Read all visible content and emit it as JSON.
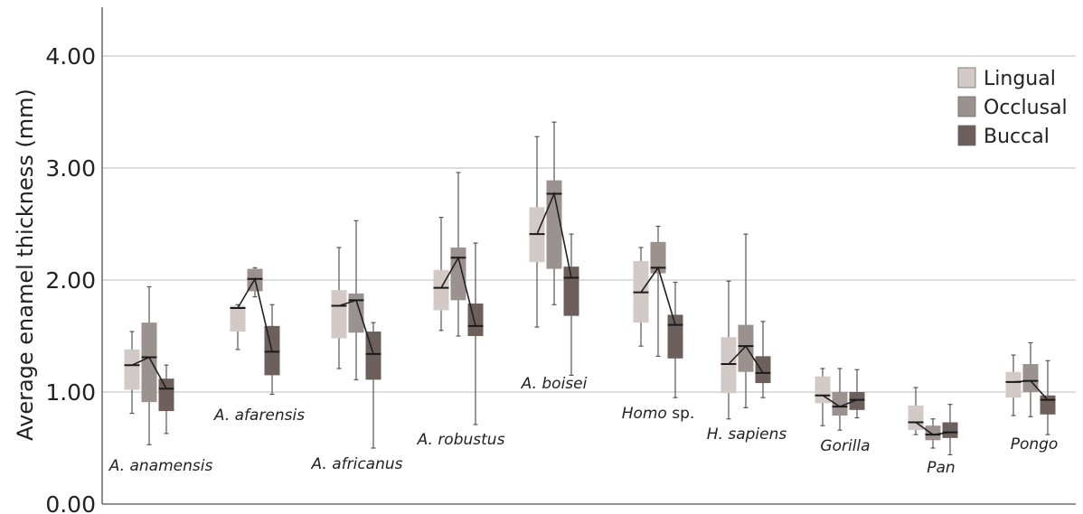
{
  "chart_data": {
    "type": "box",
    "ylabel": "Average enamel thickness (mm)",
    "ylim": [
      0,
      4.4
    ],
    "yticks": [
      "0.00",
      "1.00",
      "2.00",
      "3.00",
      "4.00"
    ],
    "grid": "horizontal",
    "legend_position": "top-right",
    "series": [
      {
        "name": "Lingual",
        "color": "#d3cac8"
      },
      {
        "name": "Occlusal",
        "color": "#9b918f"
      },
      {
        "name": "Buccal",
        "color": "#6c5f5c"
      }
    ],
    "groups": [
      {
        "name": "A. anamensis",
        "boxes": [
          {
            "min": 0.81,
            "q1": 1.02,
            "median": 1.24,
            "q3": 1.38,
            "max": 1.54
          },
          {
            "min": 0.53,
            "q1": 0.91,
            "median": 1.31,
            "q3": 1.62,
            "max": 1.94
          },
          {
            "min": 0.63,
            "q1": 0.83,
            "median": 1.03,
            "q3": 1.12,
            "max": 1.24
          }
        ]
      },
      {
        "name": "A. afarensis",
        "boxes": [
          {
            "min": 1.38,
            "q1": 1.54,
            "median": 1.75,
            "q3": 1.77,
            "max": 1.78
          },
          {
            "min": 1.85,
            "q1": 1.9,
            "median": 2.01,
            "q3": 2.1,
            "max": 2.11
          },
          {
            "min": 0.98,
            "q1": 1.15,
            "median": 1.36,
            "q3": 1.59,
            "max": 1.78
          }
        ]
      },
      {
        "name": "A. africanus",
        "boxes": [
          {
            "min": 1.21,
            "q1": 1.48,
            "median": 1.77,
            "q3": 1.91,
            "max": 2.29
          },
          {
            "min": 1.11,
            "q1": 1.53,
            "median": 1.82,
            "q3": 1.88,
            "max": 2.53
          },
          {
            "min": 0.5,
            "q1": 1.11,
            "median": 1.34,
            "q3": 1.54,
            "max": 1.62
          }
        ]
      },
      {
        "name": "A. robustus",
        "boxes": [
          {
            "min": 1.55,
            "q1": 1.73,
            "median": 1.93,
            "q3": 2.09,
            "max": 2.56
          },
          {
            "min": 1.5,
            "q1": 1.82,
            "median": 2.2,
            "q3": 2.29,
            "max": 2.96
          },
          {
            "min": 0.71,
            "q1": 1.5,
            "median": 1.59,
            "q3": 1.79,
            "max": 2.33
          }
        ]
      },
      {
        "name": "A. boisei",
        "boxes": [
          {
            "min": 1.58,
            "q1": 2.16,
            "median": 2.41,
            "q3": 2.65,
            "max": 3.28
          },
          {
            "min": 1.78,
            "q1": 2.1,
            "median": 2.77,
            "q3": 2.89,
            "max": 3.41
          },
          {
            "min": 1.15,
            "q1": 1.68,
            "median": 2.02,
            "q3": 2.12,
            "max": 2.41
          }
        ]
      },
      {
        "name": "Homo sp.",
        "boxes": [
          {
            "min": 1.41,
            "q1": 1.62,
            "median": 1.89,
            "q3": 2.17,
            "max": 2.29
          },
          {
            "min": 1.32,
            "q1": 2.06,
            "median": 2.11,
            "q3": 2.34,
            "max": 2.48
          },
          {
            "min": 0.95,
            "q1": 1.3,
            "median": 1.6,
            "q3": 1.69,
            "max": 1.98
          }
        ]
      },
      {
        "name": "H. sapiens",
        "boxes": [
          {
            "min": 0.76,
            "q1": 0.99,
            "median": 1.25,
            "q3": 1.49,
            "max": 1.99
          },
          {
            "min": 0.86,
            "q1": 1.18,
            "median": 1.41,
            "q3": 1.6,
            "max": 2.41
          },
          {
            "min": 0.95,
            "q1": 1.08,
            "median": 1.17,
            "q3": 1.32,
            "max": 1.63
          }
        ]
      },
      {
        "name": "Gorilla",
        "boxes": [
          {
            "min": 0.7,
            "q1": 0.9,
            "median": 0.97,
            "q3": 1.14,
            "max": 1.21
          },
          {
            "min": 0.66,
            "q1": 0.79,
            "median": 0.87,
            "q3": 1.0,
            "max": 1.21
          },
          {
            "min": 0.77,
            "q1": 0.84,
            "median": 0.93,
            "q3": 1.0,
            "max": 1.2
          }
        ]
      },
      {
        "name": "Pan",
        "boxes": [
          {
            "min": 0.62,
            "q1": 0.66,
            "median": 0.73,
            "q3": 0.88,
            "max": 1.04
          },
          {
            "min": 0.5,
            "q1": 0.57,
            "median": 0.62,
            "q3": 0.7,
            "max": 0.76
          },
          {
            "min": 0.44,
            "q1": 0.59,
            "median": 0.64,
            "q3": 0.73,
            "max": 0.89
          }
        ]
      },
      {
        "name": "Pongo",
        "boxes": [
          {
            "min": 0.79,
            "q1": 0.95,
            "median": 1.09,
            "q3": 1.18,
            "max": 1.33
          },
          {
            "min": 0.78,
            "q1": 1.0,
            "median": 1.1,
            "q3": 1.25,
            "max": 1.44
          },
          {
            "min": 0.62,
            "q1": 0.8,
            "median": 0.93,
            "q3": 0.97,
            "max": 1.28
          }
        ]
      }
    ]
  }
}
